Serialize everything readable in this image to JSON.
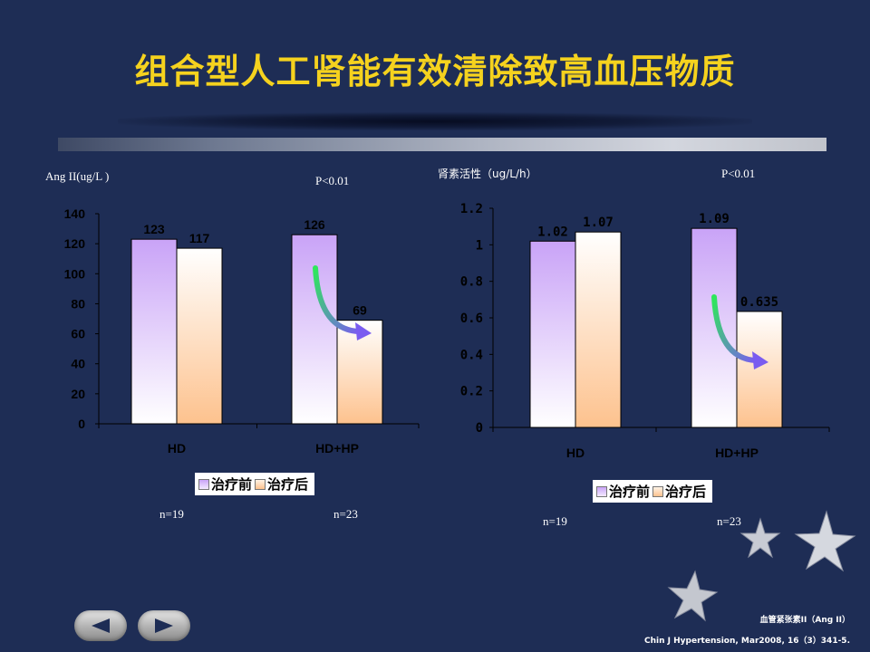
{
  "slide": {
    "title": "组合型人工肾能有效清除致高血压物质",
    "footer_line1": "血管紧张素II（Ang II）",
    "footer_line2": "Chin J Hypertension, Mar2008, 16（3）341-5."
  },
  "colors": {
    "before_top": "#c9a3f7",
    "before_bottom": "#ffffff",
    "after_top": "#ffffff",
    "after_bottom": "#fdc28e",
    "arrow_start": "#2ee85a",
    "arrow_end": "#7a5cf0"
  },
  "chart_data": [
    {
      "type": "bar",
      "ylabel": "Ang II(ug/L )",
      "annotation": "P<0.01",
      "categories": [
        "HD",
        "HD+HP"
      ],
      "series": [
        {
          "name": "治疗前",
          "values": [
            123,
            126
          ],
          "labels": [
            "123",
            "126"
          ]
        },
        {
          "name": "治疗后",
          "values": [
            117,
            69
          ],
          "labels": [
            "117",
            "69"
          ]
        }
      ],
      "ylim": [
        0,
        140
      ],
      "yticks": [
        "0",
        "20",
        "40",
        "60",
        "80",
        "100",
        "120",
        "140"
      ],
      "sample_sizes": [
        "n=19",
        "n=23"
      ],
      "legend_position": "bottom",
      "grid": false
    },
    {
      "type": "bar",
      "ylabel": "肾素活性（ug/L/h）",
      "annotation": "P<0.01",
      "categories": [
        "HD",
        "HD+HP"
      ],
      "series": [
        {
          "name": "治疗前",
          "values": [
            1.02,
            1.09
          ],
          "labels": [
            "1.02",
            "1.09"
          ]
        },
        {
          "name": "治疗后",
          "values": [
            1.07,
            0.635
          ],
          "labels": [
            "1.07",
            "0.635"
          ]
        }
      ],
      "ylim": [
        0,
        1.2
      ],
      "yticks": [
        "0",
        "0.2",
        "0.4",
        "0.6",
        "0.8",
        "1",
        "1.2"
      ],
      "sample_sizes": [
        "n=19",
        "n=23"
      ],
      "legend_position": "bottom",
      "grid": false
    }
  ]
}
